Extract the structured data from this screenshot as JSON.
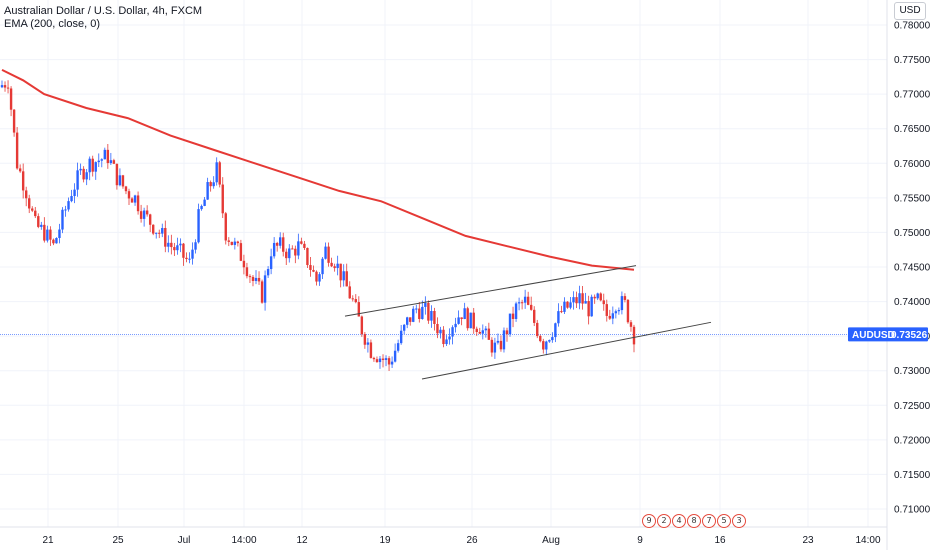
{
  "header": {
    "title": "Australian Dollar / U.S. Dollar, 4h, FXCM",
    "indicator": "EMA (200, close, 0)"
  },
  "axis": {
    "unit": "USD"
  },
  "last_price": {
    "label": "AUDUSD",
    "value": "0.73526"
  },
  "events": {
    "labels": [
      "9",
      "2",
      "4",
      "8",
      "7",
      "5",
      "3"
    ]
  },
  "colors": {
    "up": "#2962ff",
    "down": "#e53935",
    "ema": "#e53935",
    "last_price": "#2962ff",
    "channel": "#444444"
  },
  "chart_data": {
    "type": "line",
    "xticks": [
      "21",
      "25",
      "Jul",
      "14:00",
      "12",
      "19",
      "26",
      "Aug",
      "9",
      "16",
      "23",
      "14:00"
    ],
    "yticks": [
      "0.78000",
      "0.77500",
      "0.77000",
      "0.76500",
      "0.76000",
      "0.75500",
      "0.75000",
      "0.74500",
      "0.74000",
      "0.73500",
      "0.73000",
      "0.72500",
      "0.72000",
      "0.71500",
      "0.71000"
    ],
    "ylim": [
      0.7085,
      0.7818
    ],
    "last_value": 0.73526,
    "price_path": [
      [
        0,
        0.771
      ],
      [
        1,
        0.772
      ],
      [
        2,
        0.76
      ],
      [
        3,
        0.756
      ],
      [
        4,
        0.751
      ],
      [
        5,
        0.75
      ],
      [
        6,
        0.748
      ],
      [
        7,
        0.752
      ],
      [
        8,
        0.756
      ],
      [
        9,
        0.7585
      ],
      [
        10,
        0.76
      ],
      [
        11,
        0.7605
      ],
      [
        12,
        0.761
      ],
      [
        13,
        0.758
      ],
      [
        14,
        0.756
      ],
      [
        15,
        0.755
      ],
      [
        16,
        0.7525
      ],
      [
        17,
        0.751
      ],
      [
        18,
        0.7495
      ],
      [
        19,
        0.748
      ],
      [
        20,
        0.747
      ],
      [
        21,
        0.7455
      ],
      [
        22,
        0.752
      ],
      [
        23,
        0.756
      ],
      [
        24,
        0.759
      ],
      [
        25,
        0.75
      ],
      [
        26,
        0.748
      ],
      [
        27,
        0.746
      ],
      [
        28,
        0.743
      ],
      [
        29,
        0.741
      ],
      [
        30,
        0.7475
      ],
      [
        31,
        0.748
      ],
      [
        32,
        0.747
      ],
      [
        33,
        0.748
      ],
      [
        34,
        0.746
      ],
      [
        35,
        0.743
      ],
      [
        36,
        0.7475
      ],
      [
        37,
        0.746
      ],
      [
        38,
        0.743
      ],
      [
        39,
        0.74
      ],
      [
        40,
        0.736
      ],
      [
        41,
        0.733
      ],
      [
        42,
        0.732
      ],
      [
        43,
        0.731
      ],
      [
        44,
        0.734
      ],
      [
        45,
        0.737
      ],
      [
        46,
        0.739
      ],
      [
        47,
        0.7385
      ],
      [
        48,
        0.737
      ],
      [
        49,
        0.735
      ],
      [
        50,
        0.737
      ],
      [
        51,
        0.7385
      ],
      [
        52,
        0.737
      ],
      [
        53,
        0.7365
      ],
      [
        54,
        0.734
      ],
      [
        55,
        0.733
      ],
      [
        56,
        0.736
      ],
      [
        57,
        0.739
      ],
      [
        58,
        0.74
      ],
      [
        59,
        0.737
      ],
      [
        60,
        0.734
      ],
      [
        61,
        0.736
      ],
      [
        62,
        0.7385
      ],
      [
        63,
        0.7395
      ],
      [
        64,
        0.7405
      ],
      [
        65,
        0.739
      ],
      [
        66,
        0.74
      ],
      [
        67,
        0.738
      ],
      [
        68,
        0.74
      ],
      [
        69,
        0.7395
      ],
      [
        70,
        0.7352
      ]
    ],
    "ema": [
      [
        0,
        0.7735
      ],
      [
        10,
        0.772
      ],
      [
        20,
        0.77
      ],
      [
        40,
        0.768
      ],
      [
        60,
        0.7665
      ],
      [
        80,
        0.764
      ],
      [
        100,
        0.762
      ],
      [
        120,
        0.76
      ],
      [
        140,
        0.758
      ],
      [
        160,
        0.756
      ],
      [
        180,
        0.7545
      ],
      [
        200,
        0.752
      ],
      [
        220,
        0.7495
      ],
      [
        240,
        0.748
      ],
      [
        260,
        0.7465
      ],
      [
        280,
        0.7452
      ],
      [
        300,
        0.7446
      ]
    ],
    "channel_upper": [
      [
        0.7379,
        0.7452
      ]
    ],
    "channel_lower": [
      [
        0.7288,
        0.737
      ]
    ]
  }
}
